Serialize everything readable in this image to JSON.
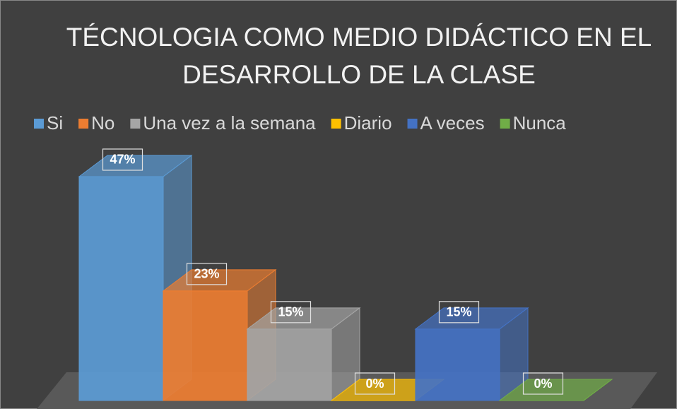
{
  "chart_data": {
    "type": "bar3d",
    "title": "TÉCNOLOGIA COMO MEDIO DIDÁCTICO EN EL DESARROLLO DE LA CLASE",
    "series": [
      {
        "name": "Si",
        "color": "#5b9bd5",
        "values": [
          47
        ],
        "value_labels": [
          "47%"
        ]
      },
      {
        "name": "No",
        "color": "#ed7d31",
        "values": [
          23
        ],
        "value_labels": [
          "23%"
        ]
      },
      {
        "name": "Una vez a la semana",
        "color": "#a5a5a5",
        "values": [
          15
        ],
        "value_labels": [
          "15%"
        ]
      },
      {
        "name": "Diario",
        "color": "#ffc000",
        "values": [
          0
        ],
        "value_labels": [
          "0%"
        ]
      },
      {
        "name": "A veces",
        "color": "#4472c4",
        "values": [
          15
        ],
        "value_labels": [
          "15%"
        ]
      },
      {
        "name": "Nunca",
        "color": "#70ad47",
        "values": [
          0
        ],
        "value_labels": [
          "0%"
        ]
      }
    ]
  }
}
